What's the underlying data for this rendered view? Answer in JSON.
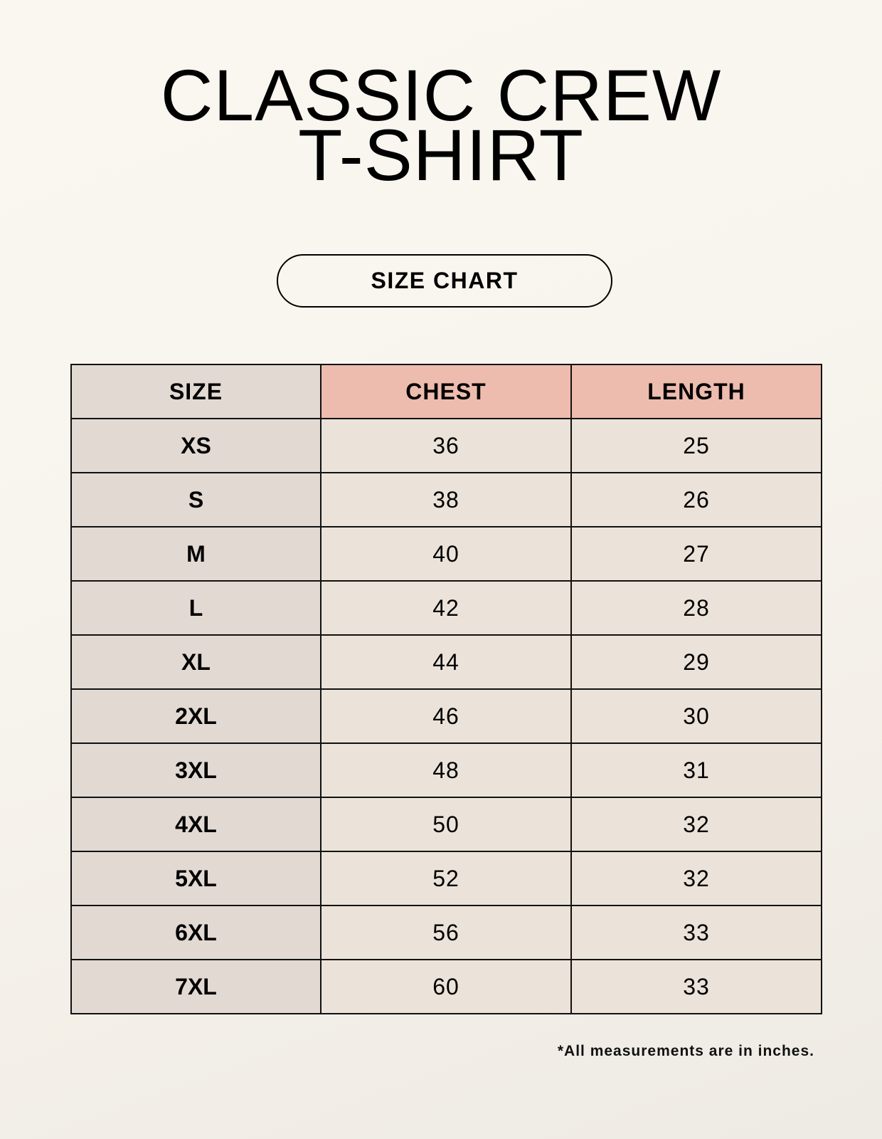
{
  "title_line1": "CLASSIC CREW",
  "title_line2": "T-SHIRT",
  "badge": "SIZE CHART",
  "colors": {
    "size_column": "#e2d9d3",
    "header_accent": "#edbcae",
    "value_cells": "#ebe3d9"
  },
  "table": {
    "headers": [
      "SIZE",
      "CHEST",
      "LENGTH"
    ],
    "rows": [
      [
        "XS",
        "36",
        "25"
      ],
      [
        "S",
        "38",
        "26"
      ],
      [
        "M",
        "40",
        "27"
      ],
      [
        "L",
        "42",
        "28"
      ],
      [
        "XL",
        "44",
        "29"
      ],
      [
        "2XL",
        "46",
        "30"
      ],
      [
        "3XL",
        "48",
        "31"
      ],
      [
        "4XL",
        "50",
        "32"
      ],
      [
        "5XL",
        "52",
        "32"
      ],
      [
        "6XL",
        "56",
        "33"
      ],
      [
        "7XL",
        "60",
        "33"
      ]
    ]
  },
  "footnote": "*All measurements are in inches."
}
